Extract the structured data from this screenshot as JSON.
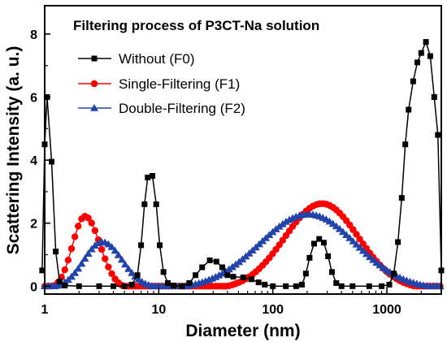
{
  "chart_data": {
    "type": "line",
    "title": "Filtering process of P3CT-Na solution",
    "xlabel": "Diameter (nm)",
    "ylabel": "Scattering Intensity (a. u.)",
    "xscale": "log",
    "xlim": [
      1,
      3000
    ],
    "ylim": [
      -0.25,
      8.9
    ],
    "x_tick_labels": [
      "1",
      "10",
      "100",
      "1000"
    ],
    "x_tick_values": [
      1,
      10,
      100,
      1000
    ],
    "y_tick_labels": [
      "0",
      "2",
      "4",
      "6",
      "8"
    ],
    "y_tick_values": [
      0,
      2,
      4,
      6,
      8
    ],
    "grid": false,
    "legend_position": "top-left",
    "series": [
      {
        "name": "Without (F0)",
        "color": "#000000",
        "marker": "square",
        "points": [
          [
            0.95,
            0.5
          ],
          [
            1.0,
            4.5
          ],
          [
            1.05,
            6.0
          ],
          [
            1.15,
            3.95
          ],
          [
            1.25,
            1.1
          ],
          [
            1.35,
            0.15
          ],
          [
            1.5,
            0.02
          ],
          [
            2,
            0
          ],
          [
            3,
            0
          ],
          [
            4,
            0
          ],
          [
            5,
            0
          ],
          [
            5.8,
            0.05
          ],
          [
            6.5,
            0.35
          ],
          [
            7.0,
            1.3
          ],
          [
            7.5,
            2.6
          ],
          [
            8.0,
            3.45
          ],
          [
            8.8,
            3.5
          ],
          [
            9.5,
            2.6
          ],
          [
            10.2,
            1.3
          ],
          [
            11.0,
            0.45
          ],
          [
            12.0,
            0.1
          ],
          [
            13.5,
            0.02
          ],
          [
            16,
            0
          ],
          [
            18.5,
            0.1
          ],
          [
            21,
            0.35
          ],
          [
            24,
            0.6
          ],
          [
            28,
            0.82
          ],
          [
            32,
            0.78
          ],
          [
            36,
            0.6
          ],
          [
            40,
            0.35
          ],
          [
            45,
            0.3
          ],
          [
            55,
            0.28
          ],
          [
            65,
            0.22
          ],
          [
            75,
            0.12
          ],
          [
            85,
            0.05
          ],
          [
            100,
            0
          ],
          [
            130,
            0
          ],
          [
            160,
            0
          ],
          [
            180,
            0.05
          ],
          [
            195,
            0.4
          ],
          [
            210,
            0.9
          ],
          [
            230,
            1.35
          ],
          [
            255,
            1.5
          ],
          [
            280,
            1.38
          ],
          [
            305,
            0.95
          ],
          [
            330,
            0.45
          ],
          [
            360,
            0.1
          ],
          [
            400,
            0
          ],
          [
            500,
            0
          ],
          [
            700,
            0
          ],
          [
            900,
            0
          ],
          [
            1050,
            0.05
          ],
          [
            1150,
            0.4
          ],
          [
            1250,
            1.4
          ],
          [
            1350,
            2.8
          ],
          [
            1450,
            4.5
          ],
          [
            1550,
            5.6
          ],
          [
            1700,
            6.5
          ],
          [
            1850,
            7.1
          ],
          [
            2000,
            7.4
          ],
          [
            2200,
            7.75
          ],
          [
            2400,
            7.3
          ],
          [
            2600,
            6.0
          ],
          [
            2800,
            4.8
          ],
          [
            3000,
            0.5
          ]
        ]
      },
      {
        "name": "Single-Filtering (F1)",
        "color": "#ff0000",
        "marker": "circle",
        "peaks": [
          {
            "from": 1.2,
            "center": 2.25,
            "to": 4.9,
            "height": 2.22
          },
          {
            "from": 40,
            "center": 270,
            "to": 1750,
            "height": 2.62
          }
        ],
        "baseline_to": 3000
      },
      {
        "name": "Double-Filtering (F2)",
        "color": "#2244aa",
        "marker": "triangle",
        "peaks": [
          {
            "from": 1.25,
            "center": 3.2,
            "to": 8.8,
            "height": 1.4
          },
          {
            "from": 17,
            "center": 205,
            "to": 2300,
            "height": 2.28
          }
        ],
        "baseline_to": 3000
      }
    ]
  }
}
